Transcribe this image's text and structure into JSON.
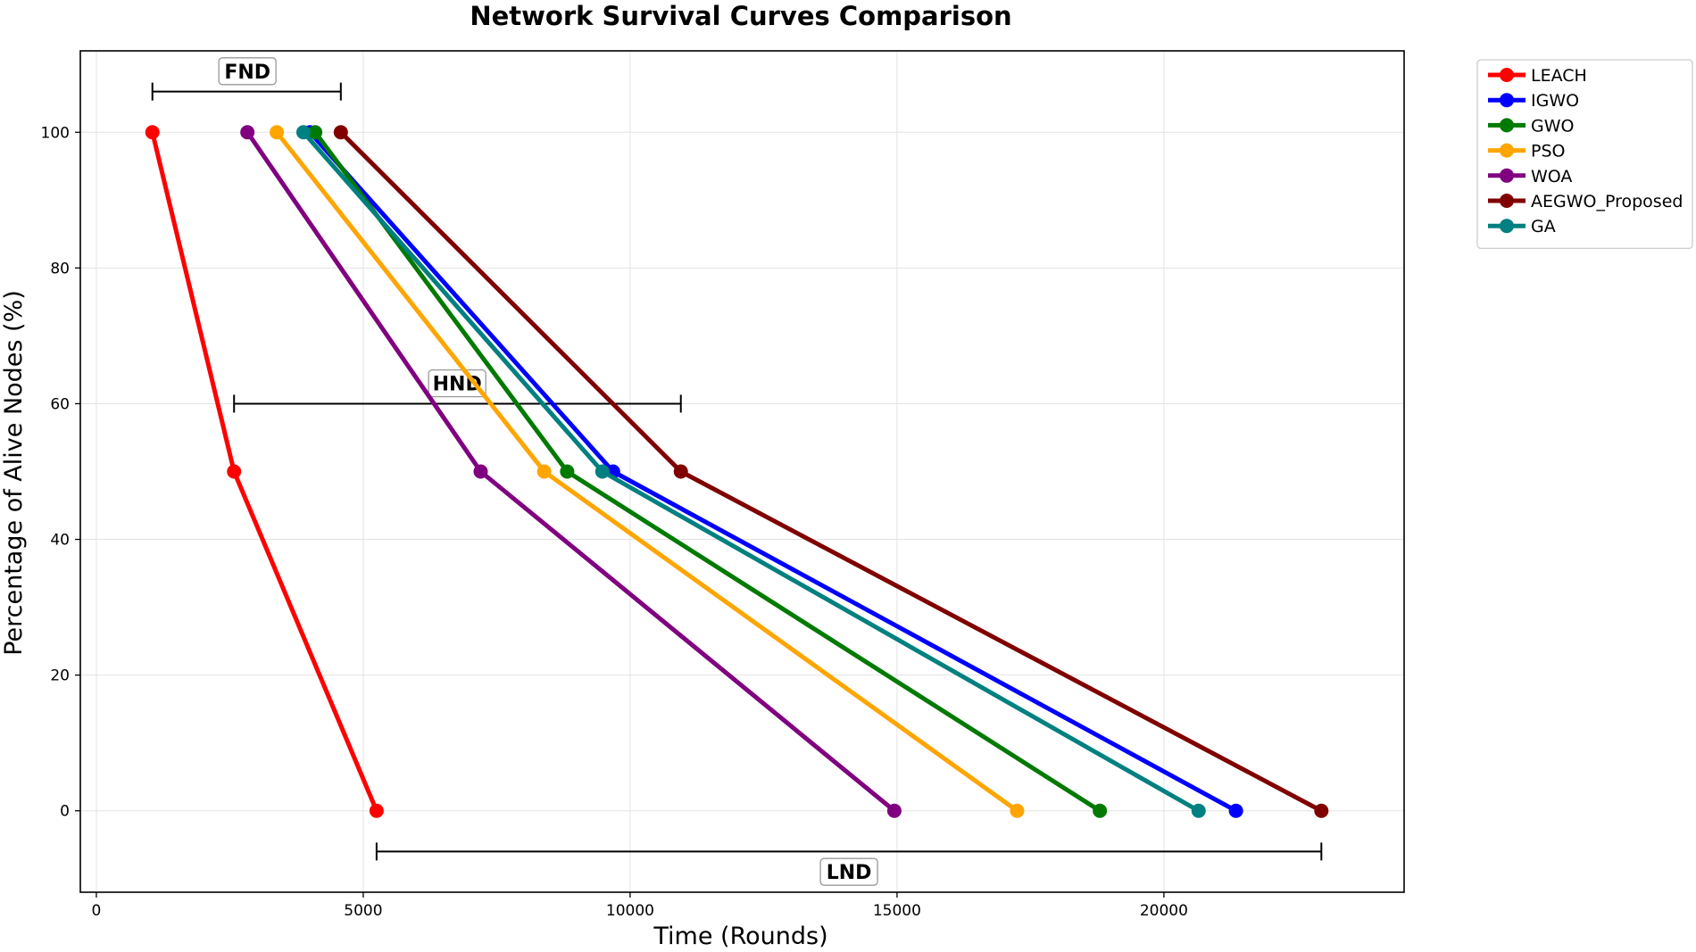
{
  "chart_data": {
    "type": "line",
    "title": "Network Survival Curves Comparison",
    "xlabel": "Time (Rounds)",
    "ylabel": "Percentage of Alive Nodes (%)",
    "xlim": [
      -300,
      24500
    ],
    "ylim": [
      -12,
      112
    ],
    "xticks": [
      0,
      5000,
      10000,
      15000,
      20000
    ],
    "yticks": [
      0,
      20,
      40,
      60,
      80,
      100
    ],
    "grid": true,
    "legend_position": "outside top-right",
    "series": [
      {
        "name": "LEACH",
        "color": "#ff0000",
        "x": [
          1050,
          2580,
          5250
        ],
        "y": [
          100,
          50,
          0
        ]
      },
      {
        "name": "IGWO",
        "color": "#0000ff",
        "x": [
          4000,
          9680,
          21350
        ],
        "y": [
          100,
          50,
          0
        ]
      },
      {
        "name": "GWO",
        "color": "#007a00",
        "x": [
          4100,
          8820,
          18800
        ],
        "y": [
          100,
          50,
          0
        ]
      },
      {
        "name": "PSO",
        "color": "#ffa500",
        "x": [
          3380,
          8390,
          17250
        ],
        "y": [
          100,
          50,
          0
        ]
      },
      {
        "name": "WOA",
        "color": "#800080",
        "x": [
          2830,
          7200,
          14950
        ],
        "y": [
          100,
          50,
          0
        ]
      },
      {
        "name": "AEGWO_Proposed",
        "color": "#800000",
        "x": [
          4580,
          10950,
          22950
        ],
        "y": [
          100,
          50,
          0
        ]
      },
      {
        "name": "GA",
        "color": "#008080",
        "x": [
          3880,
          9480,
          20650
        ],
        "y": [
          100,
          50,
          0
        ]
      }
    ],
    "annotations": [
      {
        "label": "FND",
        "x_start": 1050,
        "x_end": 4580,
        "y": 106,
        "label_x": 2830,
        "label_y": 109
      },
      {
        "label": "HND",
        "x_start": 2580,
        "x_end": 10950,
        "y": 60,
        "label_x": 6760,
        "label_y": 63
      },
      {
        "label": "LND",
        "x_start": 5250,
        "x_end": 22950,
        "y": -6,
        "label_x": 14100,
        "label_y": -9
      }
    ]
  }
}
